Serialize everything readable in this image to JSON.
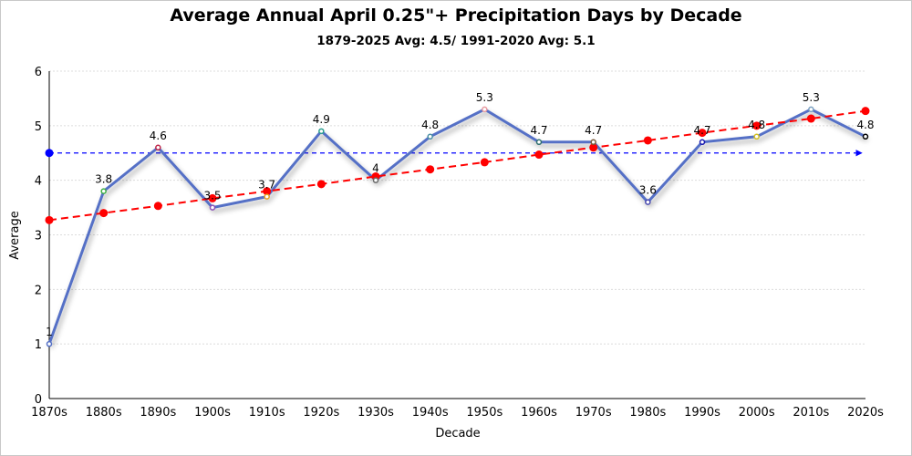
{
  "chart_data": {
    "type": "line",
    "title": "Average Annual April 0.25\"+ Precipitation Days by Decade",
    "subtitle": "1879-2025 Avg: 4.5/ 1991-2020 Avg: 5.1",
    "xlabel": "Decade",
    "ylabel": "Average",
    "ylim": [
      0,
      6
    ],
    "yticks": [
      "0",
      "1",
      "2",
      "3",
      "4",
      "5",
      "6"
    ],
    "grid": true,
    "categories": [
      "1870s",
      "1880s",
      "1890s",
      "1900s",
      "1910s",
      "1920s",
      "1930s",
      "1940s",
      "1950s",
      "1960s",
      "1970s",
      "1980s",
      "1990s",
      "2000s",
      "2010s",
      "2020s"
    ],
    "series": [
      {
        "values": [
          1,
          3.8,
          4.6,
          3.5,
          3.7,
          4.9,
          4,
          4.8,
          5.3,
          4.7,
          4.7,
          3.6,
          4.7,
          4.8,
          5.3,
          4.8
        ],
        "color": "#5470c6",
        "marker_colors": [
          "#5470c6",
          "#3cb043",
          "#c0284a",
          "#8a4fb8",
          "#e8a020",
          "#2a9d8f",
          "#6a6a6a",
          "#4a90a4",
          "#e89aa0",
          "#2f6f6f",
          "#7a5a3a",
          "#4a4ab0",
          "#1a1ab0",
          "#d4c020",
          "#7aa0c0",
          "#000000"
        ]
      },
      {
        "type": "trend",
        "values": [
          3.27,
          3.4,
          3.53,
          3.67,
          3.8,
          3.93,
          4.07,
          4.2,
          4.33,
          4.47,
          4.6,
          4.73,
          4.87,
          5.0,
          5.13,
          5.27
        ],
        "color": "#ff0000",
        "dashed": true
      },
      {
        "type": "average",
        "value": 4.5,
        "color": "#0000ff",
        "dashed": true
      }
    ]
  }
}
